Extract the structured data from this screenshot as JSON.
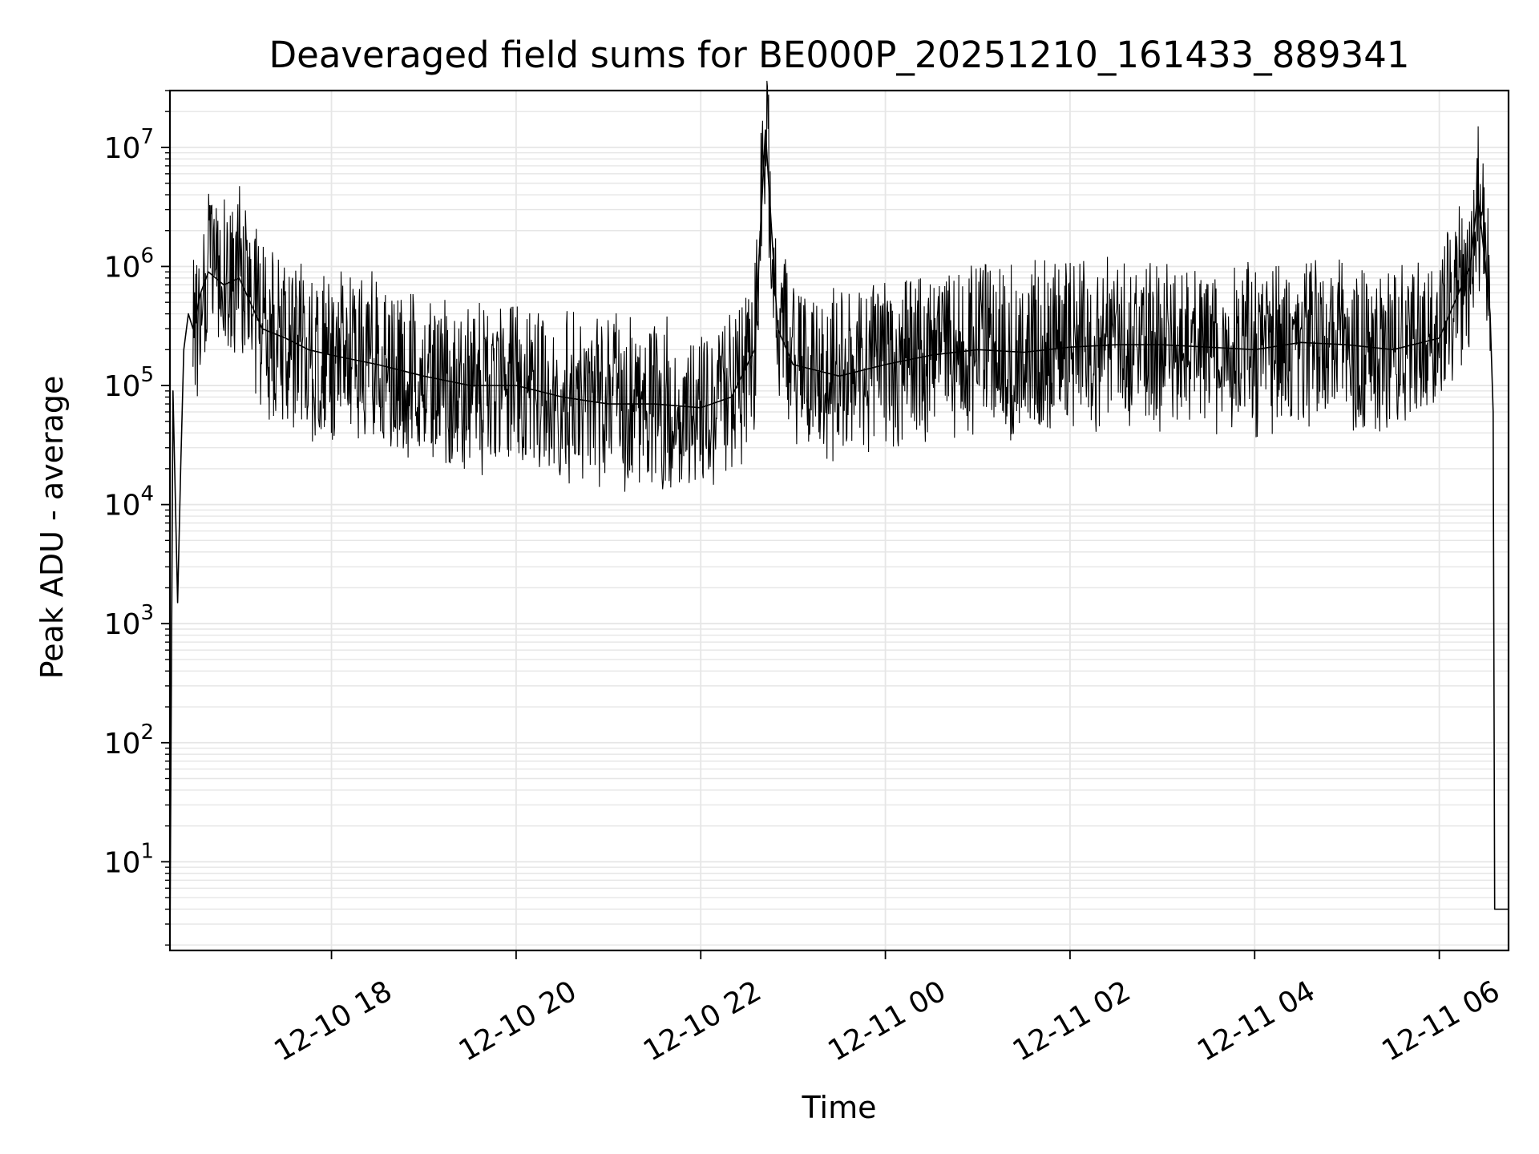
{
  "chart_data": {
    "type": "line",
    "title": "Deaveraged field sums for BE000P_20251210_161433_889341",
    "xlabel": "Time",
    "ylabel": "Peak ADU - average",
    "y_scale": "log",
    "x_range": [
      "2025-12-10 16:15",
      "2025-12-11 06:45"
    ],
    "y_range": [
      1.8,
      30000000
    ],
    "x_ticks": [
      {
        "time": "2025-12-10 18:00",
        "label": "12-10 18"
      },
      {
        "time": "2025-12-10 20:00",
        "label": "12-10 20"
      },
      {
        "time": "2025-12-10 22:00",
        "label": "12-10 22"
      },
      {
        "time": "2025-12-11 00:00",
        "label": "12-11 00"
      },
      {
        "time": "2025-12-11 02:00",
        "label": "12-11 02"
      },
      {
        "time": "2025-12-11 04:00",
        "label": "12-11 04"
      },
      {
        "time": "2025-12-11 06:00",
        "label": "12-11 06"
      }
    ],
    "y_ticks": [
      {
        "value": 10,
        "base": "10",
        "exp": "1"
      },
      {
        "value": 100,
        "base": "10",
        "exp": "2"
      },
      {
        "value": 1000,
        "base": "10",
        "exp": "3"
      },
      {
        "value": 10000,
        "base": "10",
        "exp": "4"
      },
      {
        "value": 100000,
        "base": "10",
        "exp": "5"
      },
      {
        "value": 1000000,
        "base": "10",
        "exp": "6"
      },
      {
        "value": 10000000,
        "base": "10",
        "exp": "7"
      }
    ],
    "grid": true,
    "legend": "none",
    "line_color": "#000000",
    "grid_color": "#e6e6e6",
    "series": [
      {
        "x": [
          "2025-12-10 16:15",
          "2025-12-10 16:17",
          "2025-12-10 16:20",
          "2025-12-10 16:22",
          "2025-12-10 16:24",
          "2025-12-10 16:27",
          "2025-12-10 16:30",
          "2025-12-10 16:35",
          "2025-12-10 16:40",
          "2025-12-10 16:50",
          "2025-12-10 17:00",
          "2025-12-10 17:15",
          "2025-12-10 17:30",
          "2025-12-10 17:45",
          "2025-12-10 18:00",
          "2025-12-10 18:30",
          "2025-12-10 19:00",
          "2025-12-10 19:30",
          "2025-12-10 20:00",
          "2025-12-10 20:30",
          "2025-12-10 21:00",
          "2025-12-10 21:30",
          "2025-12-10 22:00",
          "2025-12-10 22:20",
          "2025-12-10 22:35",
          "2025-12-10 22:42",
          "2025-12-10 22:50",
          "2025-12-10 23:00",
          "2025-12-10 23:30",
          "2025-12-11 00:00",
          "2025-12-11 00:30",
          "2025-12-11 01:00",
          "2025-12-11 01:30",
          "2025-12-11 02:00",
          "2025-12-11 02:30",
          "2025-12-11 03:00",
          "2025-12-11 03:30",
          "2025-12-11 04:00",
          "2025-12-11 04:30",
          "2025-12-11 05:00",
          "2025-12-11 05:30",
          "2025-12-11 06:00",
          "2025-12-11 06:10",
          "2025-12-11 06:20",
          "2025-12-11 06:25",
          "2025-12-11 06:30",
          "2025-12-11 06:33",
          "2025-12-11 06:35",
          "2025-12-11 06:36",
          "2025-12-11 06:45"
        ],
        "y": [
          2,
          90000,
          1500,
          20000,
          200000,
          400000,
          300000,
          600000,
          900000,
          700000,
          800000,
          300000,
          250000,
          200000,
          180000,
          150000,
          120000,
          100000,
          100000,
          80000,
          70000,
          70000,
          65000,
          80000,
          200000,
          14000000,
          300000,
          150000,
          120000,
          150000,
          180000,
          200000,
          190000,
          210000,
          220000,
          220000,
          210000,
          200000,
          230000,
          220000,
          200000,
          250000,
          500000,
          1000000,
          4000000,
          1000000,
          400000,
          60000,
          4,
          4
        ]
      }
    ]
  }
}
